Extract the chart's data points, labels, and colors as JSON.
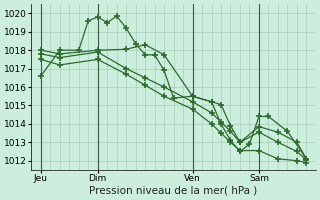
{
  "title": "Pression niveau de la mer( hPa )",
  "bg_color": "#cceedd",
  "grid_color": "#aaccbb",
  "line_color": "#2d6a2d",
  "xlim": [
    0,
    90
  ],
  "ylim": [
    1011.5,
    1020.5
  ],
  "yticks": [
    1012,
    1013,
    1014,
    1015,
    1016,
    1017,
    1018,
    1019,
    1020
  ],
  "xtick_labels": [
    "Jeu",
    "Dim",
    "Ven",
    "Sam"
  ],
  "xtick_positions": [
    3,
    21,
    51,
    72
  ],
  "vlines": [
    3,
    21,
    51,
    72
  ],
  "series": [
    {
      "x": [
        3,
        9,
        15,
        18,
        21,
        24,
        27,
        30,
        33,
        36,
        39,
        42,
        45,
        51,
        57,
        60,
        63,
        66,
        69,
        72,
        75,
        81,
        87
      ],
      "y": [
        1016.6,
        1018.0,
        1018.0,
        1019.6,
        1019.8,
        1019.5,
        1019.85,
        1019.2,
        1018.35,
        1017.75,
        1017.75,
        1016.9,
        1015.4,
        1015.5,
        1015.2,
        1014.0,
        1013.1,
        1012.5,
        1012.9,
        1014.4,
        1014.4,
        1013.6,
        1012.1
      ]
    },
    {
      "x": [
        3,
        9,
        21,
        30,
        36,
        42,
        51,
        57,
        60,
        63,
        66,
        72,
        78,
        84,
        87
      ],
      "y": [
        1018.0,
        1017.8,
        1018.0,
        1018.05,
        1018.3,
        1017.75,
        1015.5,
        1015.2,
        1015.05,
        1013.9,
        1013.0,
        1013.85,
        1013.55,
        1013.0,
        1012.1
      ]
    },
    {
      "x": [
        3,
        9,
        21,
        30,
        36,
        42,
        51,
        57,
        60,
        63,
        66,
        72,
        78,
        84,
        87
      ],
      "y": [
        1017.8,
        1017.6,
        1017.9,
        1017.0,
        1016.5,
        1016.0,
        1015.2,
        1014.6,
        1014.1,
        1013.6,
        1013.0,
        1013.55,
        1013.0,
        1012.5,
        1012.05
      ]
    },
    {
      "x": [
        3,
        9,
        21,
        30,
        36,
        42,
        51,
        57,
        60,
        63,
        66,
        72,
        78,
        84,
        87
      ],
      "y": [
        1017.5,
        1017.2,
        1017.5,
        1016.7,
        1016.1,
        1015.5,
        1014.8,
        1014.0,
        1013.5,
        1013.0,
        1012.55,
        1012.55,
        1012.1,
        1012.0,
        1011.9
      ]
    }
  ]
}
